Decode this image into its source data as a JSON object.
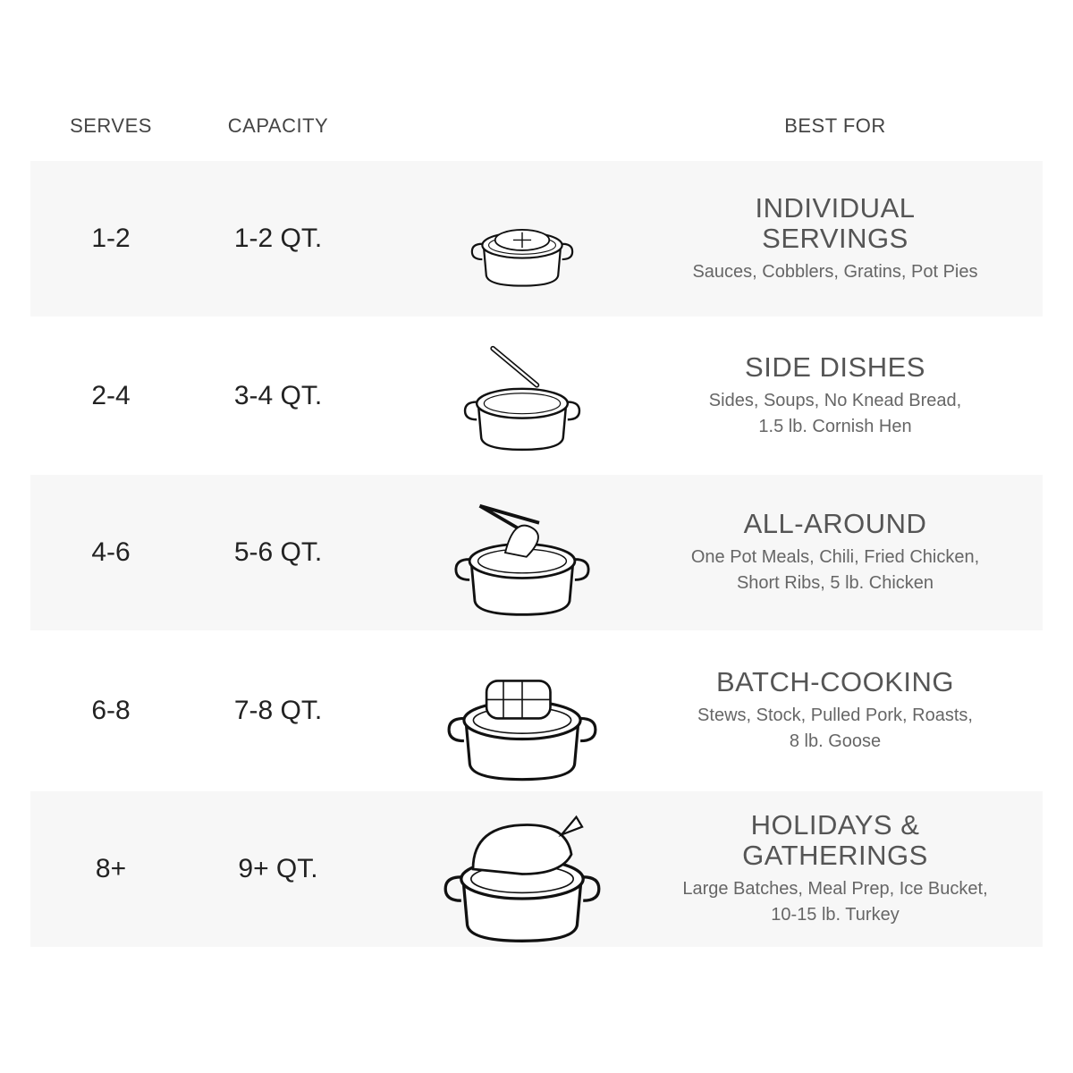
{
  "headers": {
    "serves": "SERVES",
    "capacity": "CAPACITY",
    "best_for": "BEST FOR"
  },
  "rows": [
    {
      "serves": "1-2",
      "capacity": "1-2 QT.",
      "title": "INDIVIDUAL SERVINGS",
      "desc": "Sauces, Cobblers, Gratins, Pot Pies",
      "icon": "pot-pie-icon",
      "shaded": true
    },
    {
      "serves": "2-4",
      "capacity": "3-4 QT.",
      "title": "SIDE DISHES",
      "desc": "Sides, Soups, No Knead Bread, 1.5 lb. Cornish Hen",
      "icon": "pot-with-spoon-icon",
      "shaded": false
    },
    {
      "serves": "4-6",
      "capacity": "5-6 QT.",
      "title": "ALL-AROUND",
      "desc": "One Pot Meals, Chili, Fried Chicken, Short Ribs, 5 lb. Chicken",
      "icon": "pot-with-tongs-icon",
      "shaded": true
    },
    {
      "serves": "6-8",
      "capacity": "7-8 QT.",
      "title": "BATCH-COOKING",
      "desc": "Stews, Stock, Pulled Pork, Roasts, 8 lb. Goose",
      "icon": "pot-with-roast-icon",
      "shaded": false
    },
    {
      "serves": "8+",
      "capacity": "9+ QT.",
      "title": "HOLIDAYS & GATHERINGS",
      "desc": "Large Batches, Meal Prep, Ice Bucket, 10-15 lb. Turkey",
      "icon": "pot-with-turkey-icon",
      "shaded": true
    }
  ],
  "colors": {
    "row_shade": "#f7f7f7",
    "text": "#222222",
    "title": "#555555"
  }
}
